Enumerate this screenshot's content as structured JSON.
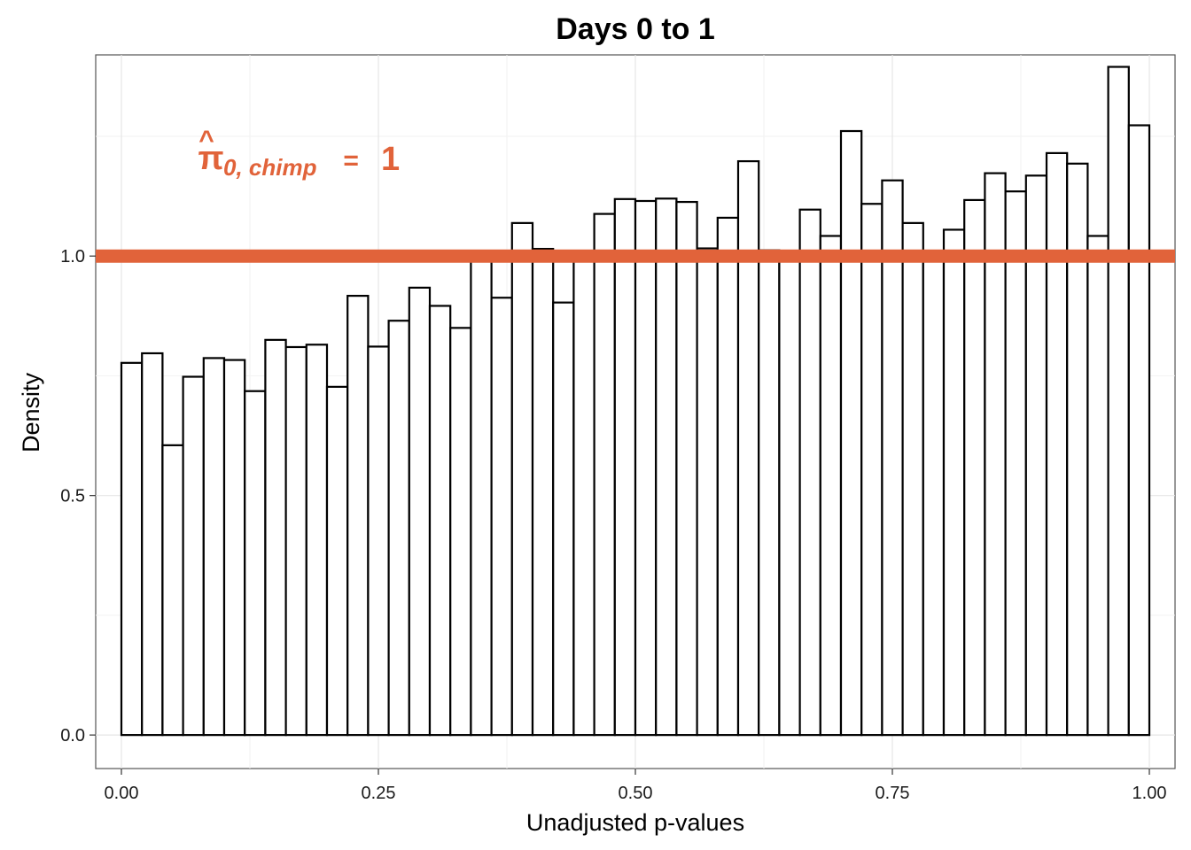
{
  "chart_data": {
    "type": "bar",
    "title": "Days 0 to 1",
    "xlabel": "Unadjusted p-values",
    "ylabel": "Density",
    "xlim": [
      -0.025,
      1.025
    ],
    "ylim": [
      -0.07,
      1.42
    ],
    "x_ticks": [
      0,
      0.25,
      0.5,
      0.75,
      1
    ],
    "x_tick_labels": [
      "0.00",
      "0.25",
      "0.50",
      "0.75",
      "1.00"
    ],
    "y_ticks": [
      0,
      0.5,
      1
    ],
    "y_tick_labels": [
      "0.0",
      "0.5",
      "1.0"
    ],
    "grid": true,
    "bin_width": 0.02,
    "bins_start": 0,
    "values": [
      0.777,
      0.797,
      0.605,
      0.748,
      0.787,
      0.783,
      0.718,
      0.825,
      0.81,
      0.815,
      0.727,
      0.917,
      0.811,
      0.865,
      0.934,
      0.896,
      0.85,
      0.996,
      0.913,
      1.069,
      1.015,
      0.903,
      0.996,
      1.088,
      1.119,
      1.115,
      1.12,
      1.113,
      1.016,
      1.08,
      1.198,
      1.012,
      0.996,
      1.097,
      1.042,
      1.261,
      1.109,
      1.158,
      1.069,
      0.996,
      1.055,
      1.117,
      1.173,
      1.135,
      1.168,
      1.215,
      1.193,
      1.042,
      1.395,
      1.273
    ],
    "hline": {
      "y": 1.0,
      "color": "#E1633A"
    },
    "annotation": {
      "symbol": "π",
      "hat": "^",
      "subscript": "0, chimp",
      "equals": " = ",
      "value": "1",
      "color": "#E1633A"
    }
  }
}
